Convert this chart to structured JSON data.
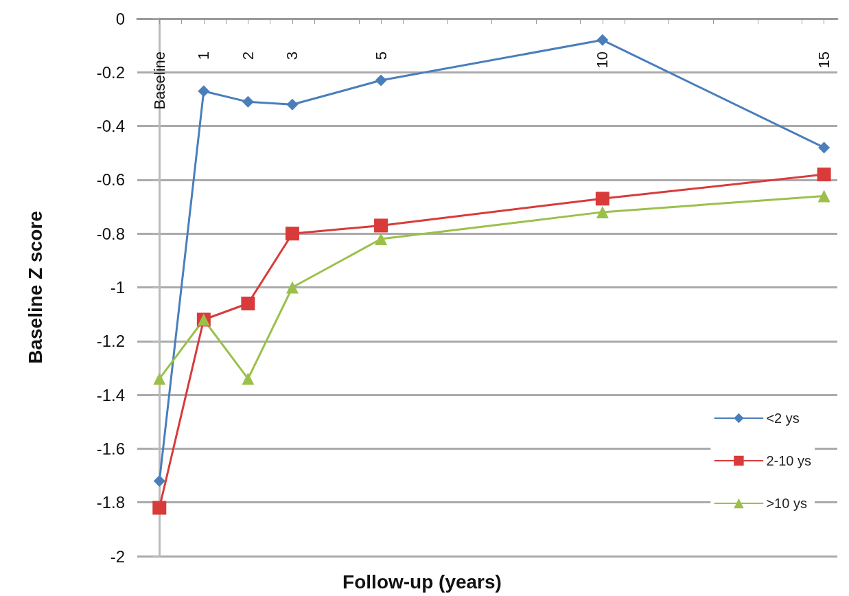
{
  "chart_data": {
    "type": "line",
    "xlabel": "Follow-up (years)",
    "ylabel": "Baseline Z score",
    "x": [
      0,
      1,
      2,
      3,
      5,
      10,
      15
    ],
    "series": [
      {
        "name": "<2 ys",
        "color": "#4a7ebb",
        "marker": "diamond",
        "values": [
          -1.72,
          -0.27,
          -0.31,
          -0.32,
          -0.23,
          -0.08,
          -0.48
        ]
      },
      {
        "name": "2-10 ys",
        "color": "#d93a3a",
        "marker": "square",
        "values": [
          -1.82,
          -1.12,
          -1.06,
          -0.8,
          -0.77,
          -0.67,
          -0.58
        ]
      },
      {
        "name": ">10 ys",
        "color": "#9bc04a",
        "marker": "triangle",
        "values": [
          -1.34,
          -1.12,
          -1.34,
          -1.0,
          -0.82,
          -0.72,
          -0.66
        ]
      }
    ],
    "xlim": [
      -0.5,
      15.3
    ],
    "xticks": [
      {
        "value": 0,
        "label": "Baseline"
      },
      1,
      2,
      3,
      5,
      10,
      15,
      {
        "value": 0.5,
        "label": null
      },
      {
        "value": 1.5,
        "label": null
      },
      {
        "value": 2.5,
        "label": null
      },
      {
        "value": 3.5,
        "label": null
      },
      {
        "value": 4.5,
        "label": null
      },
      {
        "value": 5.5,
        "label": null
      },
      {
        "value": 6.5,
        "label": null
      },
      {
        "value": 7.5,
        "label": null
      },
      {
        "value": 8.5,
        "label": null
      },
      {
        "value": 9.5,
        "label": null
      },
      {
        "value": 10.5,
        "label": null
      },
      {
        "value": 11.5,
        "label": null
      },
      {
        "value": 12.5,
        "label": null
      },
      {
        "value": 13.5,
        "label": null
      },
      {
        "value": 14.5,
        "label": null
      }
    ],
    "ylim": [
      -2,
      0
    ],
    "yticks": [
      0,
      -0.2,
      -0.4,
      -0.6,
      -0.8,
      -1,
      -1.2,
      -1.4,
      -1.6,
      -1.8,
      -2
    ],
    "grid": "y",
    "legend": "bottom right",
    "line_style": "solid"
  }
}
